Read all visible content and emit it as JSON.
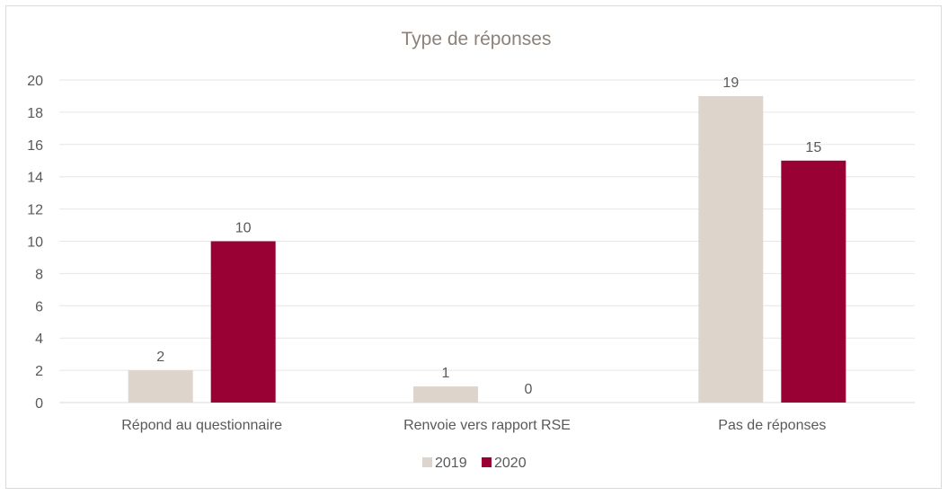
{
  "chart_data": {
    "type": "bar",
    "title": "Type de réponses",
    "categories": [
      "Répond au questionnaire",
      "Renvoie vers rapport RSE",
      "Pas de réponses"
    ],
    "series": [
      {
        "name": "2019",
        "values": [
          2,
          1,
          19
        ],
        "color": "#ddd5cb"
      },
      {
        "name": "2020",
        "values": [
          10,
          0,
          15
        ],
        "color": "#990033"
      }
    ],
    "ylim": [
      0,
      20
    ],
    "yticks": [
      0,
      2,
      4,
      6,
      8,
      10,
      12,
      14,
      16,
      18,
      20
    ],
    "grid": true,
    "legend": "bottom",
    "data_labels": true
  }
}
